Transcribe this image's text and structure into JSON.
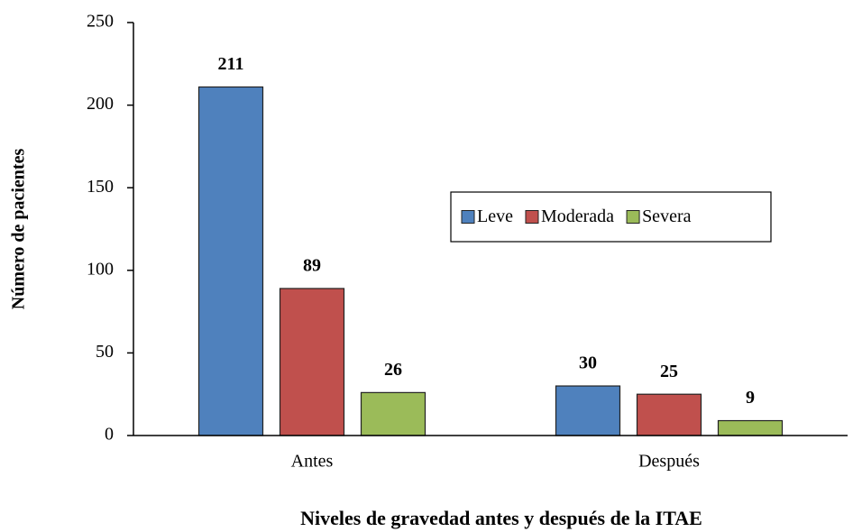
{
  "chart_data": {
    "type": "bar",
    "x_label": "Niveles de gravedad antes y después de la ITAE",
    "y_label": "Número de pacientes",
    "categories": [
      "Antes",
      "Después"
    ],
    "series": [
      {
        "name": "Leve",
        "color": "#4f81bd",
        "values": [
          211,
          30
        ]
      },
      {
        "name": "Moderada",
        "color": "#c0504d",
        "values": [
          89,
          25
        ]
      },
      {
        "name": "Severa",
        "color": "#9bbb59",
        "values": [
          26,
          9
        ]
      }
    ],
    "ylim": [
      0,
      250
    ],
    "yticks": [
      0,
      50,
      100,
      150,
      200,
      250
    ],
    "legend": "center-right",
    "grid": false
  }
}
